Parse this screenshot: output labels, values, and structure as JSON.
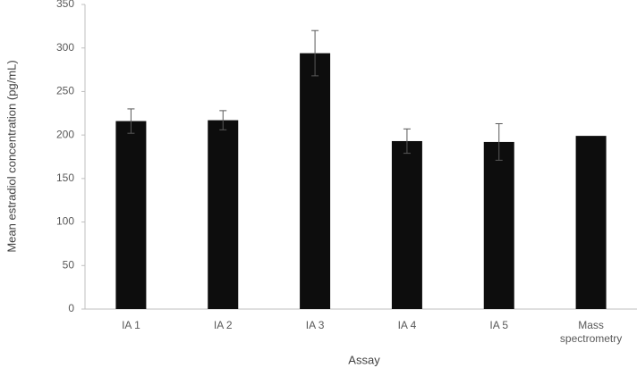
{
  "chart_data": {
    "type": "bar",
    "x_label": "Assay",
    "y_label": "Mean estradiol concentration (pg/mL)",
    "categories": [
      "IA 1",
      "IA 2",
      "IA 3",
      "IA 4",
      "IA 5",
      "Mass spectrometry"
    ],
    "series": [
      {
        "color": "#0d0d0d",
        "values": [
          216,
          217,
          294,
          193,
          192,
          199
        ],
        "errors": [
          14,
          11,
          26,
          14,
          21,
          null
        ]
      }
    ],
    "ylim": [
      0,
      350
    ],
    "yticks": [
      0,
      50,
      100,
      150,
      200,
      250,
      300,
      350
    ],
    "grid": false
  }
}
